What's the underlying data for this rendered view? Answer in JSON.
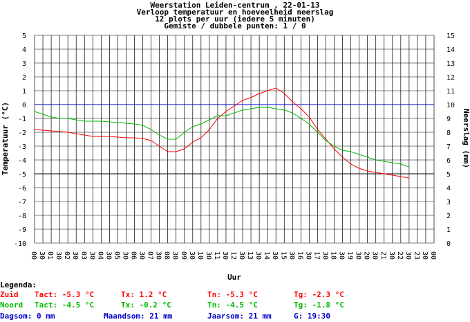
{
  "header": {
    "line1": "Weerstation Leiden-centrum , 22-01-13",
    "line2": "Verloop temperatuur en hoeveelheid neerslag",
    "line3": "12 plots per uur (iedere 5 minuten)",
    "line4": "Gemiste / dubbele punten: 1 / 0"
  },
  "chart_data": {
    "type": "line",
    "ylabel": "Temperatuur (°C)",
    "y2label": "Neerslag (mm)",
    "xlabel": "Uur",
    "ylim": [
      -10,
      5
    ],
    "y2lim": [
      0,
      15
    ],
    "yticks": [
      "5",
      "4",
      "3",
      "2",
      "1",
      "0",
      "-1",
      "-2",
      "-3",
      "-4",
      "-5",
      "-6",
      "-7",
      "-8",
      "-9",
      "-10"
    ],
    "y2ticks": [
      "15",
      "14",
      "13",
      "12",
      "11",
      "10",
      "9",
      "8",
      "7",
      "6",
      "5",
      "4",
      "3",
      "2",
      "1",
      "0"
    ],
    "xticks": [
      "00",
      "30",
      "01",
      "30",
      "02",
      "30",
      "03",
      "30",
      "04",
      "30",
      "05",
      "30",
      "06",
      "30",
      "07",
      "30",
      "08",
      "30",
      "09",
      "30",
      "10",
      "30",
      "11",
      "30",
      "12",
      "30",
      "13",
      "30",
      "14",
      "30",
      "15",
      "30",
      "16",
      "30",
      "17",
      "30",
      "18",
      "30",
      "19",
      "30",
      "20",
      "30",
      "21",
      "30",
      "22",
      "30",
      "23",
      "30",
      "00"
    ],
    "grid": true,
    "colors": {
      "zuid": "#ff0000",
      "noord": "#00bb00",
      "zero": "#0000cc"
    },
    "series": [
      {
        "name": "Zuid",
        "x": [
          0,
          0.5,
          1,
          1.5,
          2,
          2.5,
          3,
          3.5,
          4,
          4.5,
          5,
          5.5,
          6,
          6.5,
          7,
          7.5,
          8,
          8.5,
          9,
          9.5,
          10,
          10.5,
          11,
          11.5,
          12,
          12.5,
          13,
          13.5,
          14,
          14.5,
          15,
          15.5,
          16,
          16.5,
          17,
          17.5,
          18,
          18.5,
          19,
          19.5,
          20,
          20.5,
          21,
          21.5,
          22,
          22.5
        ],
        "values": [
          -1.8,
          -1.85,
          -1.9,
          -1.95,
          -2.0,
          -2.1,
          -2.2,
          -2.3,
          -2.3,
          -2.3,
          -2.35,
          -2.4,
          -2.4,
          -2.45,
          -2.6,
          -3.0,
          -3.4,
          -3.4,
          -3.2,
          -2.7,
          -2.4,
          -1.8,
          -1.0,
          -0.5,
          -0.1,
          0.3,
          0.5,
          0.8,
          1.0,
          1.2,
          0.8,
          0.2,
          -0.3,
          -0.9,
          -1.8,
          -2.5,
          -3.2,
          -3.8,
          -4.3,
          -4.6,
          -4.8,
          -4.9,
          -5.0,
          -5.1,
          -5.2,
          -5.3
        ]
      },
      {
        "name": "Noord",
        "x": [
          0,
          0.5,
          1,
          1.5,
          2,
          2.5,
          3,
          3.5,
          4,
          4.5,
          5,
          5.5,
          6,
          6.5,
          7,
          7.5,
          8,
          8.5,
          9,
          9.5,
          10,
          10.5,
          11,
          11.5,
          12,
          12.5,
          13,
          13.5,
          14,
          14.5,
          15,
          15.5,
          16,
          16.5,
          17,
          17.5,
          18,
          18.5,
          19,
          19.5,
          20,
          20.5,
          21,
          21.5,
          22,
          22.5
        ],
        "values": [
          -0.5,
          -0.7,
          -0.9,
          -1.0,
          -1.0,
          -1.1,
          -1.2,
          -1.2,
          -1.2,
          -1.25,
          -1.3,
          -1.35,
          -1.4,
          -1.5,
          -1.8,
          -2.2,
          -2.5,
          -2.5,
          -2.0,
          -1.6,
          -1.4,
          -1.1,
          -0.8,
          -0.8,
          -0.6,
          -0.4,
          -0.3,
          -0.2,
          -0.2,
          -0.3,
          -0.4,
          -0.6,
          -1.0,
          -1.4,
          -2.0,
          -2.6,
          -3.0,
          -3.3,
          -3.4,
          -3.6,
          -3.8,
          -4.0,
          -4.1,
          -4.2,
          -4.3,
          -4.5
        ]
      }
    ]
  },
  "legend": {
    "title": "Legenda:",
    "zuid": {
      "label": "Zuid",
      "tact": "Tact: -5.3 °C",
      "tx": "Tx: 1.2 °C",
      "tn": "Tn: -5.3 °C",
      "tg": "Tg: -2.3 °C"
    },
    "noord": {
      "label": "Noord",
      "tact": "Tact: -4.5 °C",
      "tx": "Tx: -0.2 °C",
      "tn": "Tn: -4.5 °C",
      "tg": "Tg: -1.8 °C"
    },
    "rain": {
      "dag": "Dagsom: 0 mm",
      "maand": "Maandsom: 21 mm",
      "jaar": "Jaarsom: 21 mm",
      "g": "G: 19:30"
    }
  }
}
